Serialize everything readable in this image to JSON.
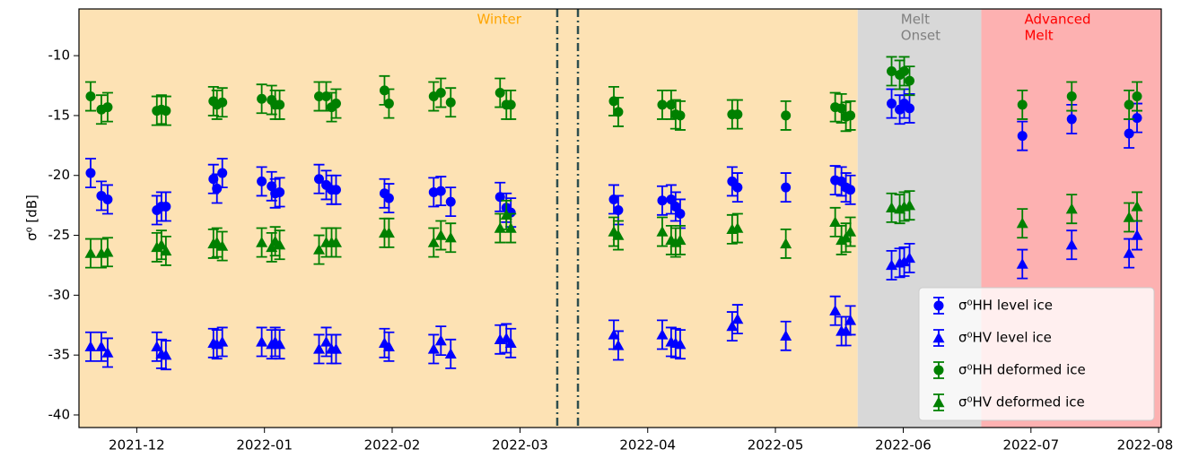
{
  "chart_data": {
    "type": "scatter",
    "ylabel": "σ⁰ [dB]",
    "xlim": [
      2021.879,
      2022.585
    ],
    "ylim": [
      -41.05,
      -6.1
    ],
    "xticks": [
      {
        "value": 2021.9167,
        "label": "2021-12"
      },
      {
        "value": 2022.0,
        "label": "2022-01"
      },
      {
        "value": 2022.0833,
        "label": "2022-02"
      },
      {
        "value": 2022.1667,
        "label": "2022-03"
      },
      {
        "value": 2022.25,
        "label": "2022-04"
      },
      {
        "value": 2022.3333,
        "label": "2022-05"
      },
      {
        "value": 2022.4167,
        "label": "2022-06"
      },
      {
        "value": 2022.5,
        "label": "2022-07"
      },
      {
        "value": 2022.5833,
        "label": "2022-08"
      }
    ],
    "yticks": [
      -40,
      -35,
      -30,
      -25,
      -20,
      -15,
      -10
    ],
    "regions": [
      {
        "start": 2021.879,
        "end": 2022.387,
        "color": "#fde2b4",
        "label": [
          "Winter"
        ],
        "label_color": "#ffa500"
      },
      {
        "start": 2022.387,
        "end": 2022.4676,
        "color": "#d8d8d8",
        "label": [
          "Melt",
          "Onset"
        ],
        "label_color": "#808080"
      },
      {
        "start": 2022.4676,
        "end": 2022.585,
        "color": "#fdb1b1",
        "label": [
          "Advanced",
          "Melt"
        ],
        "label_color": "#ff0000"
      }
    ],
    "vlines": [
      2022.191,
      2022.2045
    ],
    "vline_color": "#2f4f4f",
    "legend": "lower right",
    "x": [
      2021.8866,
      2021.8936,
      2021.8977,
      2021.9298,
      2021.9328,
      2021.9357,
      2021.9667,
      2021.969,
      2021.9725,
      2021.9982,
      2022.0047,
      2022.007,
      2022.0099,
      2022.0356,
      2022.0403,
      2022.0438,
      2022.0467,
      2022.0783,
      2022.0812,
      2022.1104,
      2022.1151,
      2022.1215,
      2022.1537,
      2022.1578,
      2022.1607,
      2022.2279,
      2022.2308,
      2022.2595,
      2022.2653,
      2022.2682,
      2022.2712,
      2022.3051,
      2022.3086,
      2022.3401,
      2022.3723,
      2022.3764,
      2022.3793,
      2022.3822,
      2022.4091,
      2022.4144,
      2022.4173,
      2022.4208,
      2022.4944,
      2022.5266,
      2022.564,
      2022.5692
    ],
    "series": [
      {
        "name": "σ⁰HH level ice",
        "color": "#0000ff",
        "marker": "circle",
        "error": 1.2,
        "values": [
          -19.8,
          -21.7,
          -22.0,
          -22.9,
          -22.6,
          -22.6,
          -20.3,
          -21.1,
          -19.8,
          -20.5,
          -20.9,
          -21.5,
          -21.4,
          -20.3,
          -20.8,
          -21.2,
          -21.2,
          -21.5,
          -21.9,
          -21.4,
          -21.3,
          -22.2,
          -21.8,
          -22.7,
          -23.1,
          -22.0,
          -22.9,
          -22.1,
          -22.0,
          -22.6,
          -23.2,
          -20.5,
          -21.0,
          -21.0,
          -20.4,
          -20.5,
          -21.0,
          -21.2,
          -14.0,
          -14.5,
          -14.0,
          -14.4,
          -16.7,
          -15.3,
          -16.5,
          -15.2
        ]
      },
      {
        "name": "σ⁰HV level ice",
        "color": "#0000ff",
        "marker": "triangle",
        "error": 1.2,
        "values": [
          -34.3,
          -34.3,
          -34.8,
          -34.3,
          -34.9,
          -35.0,
          -34.0,
          -34.1,
          -33.9,
          -33.9,
          -34.1,
          -33.9,
          -34.1,
          -34.5,
          -33.9,
          -34.5,
          -34.5,
          -34.0,
          -34.3,
          -34.5,
          -33.8,
          -34.9,
          -33.7,
          -33.6,
          -34.0,
          -33.3,
          -34.2,
          -33.3,
          -33.9,
          -34.0,
          -34.1,
          -32.6,
          -32.0,
          -33.4,
          -31.3,
          -33.0,
          -33.0,
          -32.1,
          -27.5,
          -27.3,
          -27.2,
          -26.9,
          -27.4,
          -25.8,
          -26.5,
          -25.0
        ]
      },
      {
        "name": "σ⁰HH deformed ice",
        "color": "#008000",
        "marker": "circle",
        "error": 1.2,
        "values": [
          -13.4,
          -14.5,
          -14.3,
          -14.6,
          -14.5,
          -14.6,
          -13.8,
          -14.1,
          -13.9,
          -13.6,
          -13.7,
          -14.1,
          -14.1,
          -13.4,
          -13.4,
          -14.3,
          -14.0,
          -12.9,
          -14.0,
          -13.4,
          -13.1,
          -13.9,
          -13.1,
          -14.1,
          -14.1,
          -13.8,
          -14.7,
          -14.1,
          -14.1,
          -14.9,
          -15.0,
          -14.9,
          -14.9,
          -15.0,
          -14.3,
          -14.4,
          -15.1,
          -15.0,
          -11.3,
          -11.6,
          -11.3,
          -12.1,
          -14.1,
          -13.4,
          -14.1,
          -13.4
        ]
      },
      {
        "name": "σ⁰HV deformed ice",
        "color": "#008000",
        "marker": "triangle",
        "error": 1.2,
        "values": [
          -26.5,
          -26.5,
          -26.4,
          -26.0,
          -25.8,
          -26.3,
          -25.7,
          -25.6,
          -25.9,
          -25.6,
          -26.0,
          -25.5,
          -25.8,
          -26.2,
          -25.6,
          -25.6,
          -25.6,
          -24.8,
          -24.8,
          -25.6,
          -25.0,
          -25.2,
          -24.4,
          -23.3,
          -24.4,
          -24.7,
          -25.0,
          -24.7,
          -25.4,
          -25.6,
          -25.4,
          -24.5,
          -24.4,
          -25.7,
          -23.9,
          -25.4,
          -25.2,
          -24.7,
          -22.7,
          -22.8,
          -22.6,
          -22.5,
          -24.0,
          -22.8,
          -23.5,
          -22.6
        ]
      }
    ]
  }
}
